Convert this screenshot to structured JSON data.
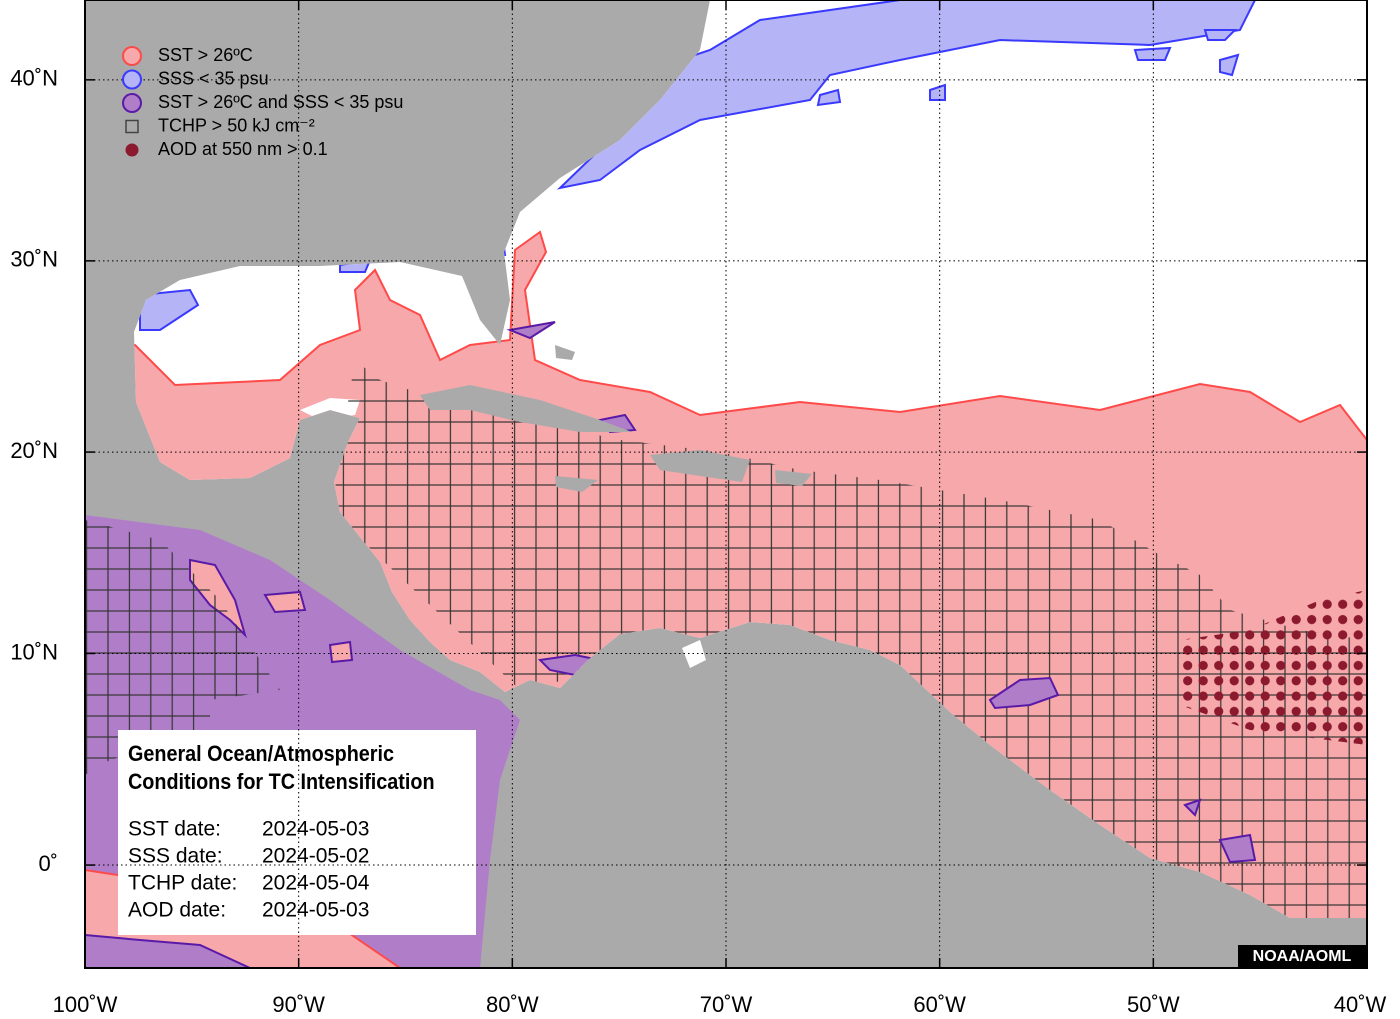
{
  "map": {
    "legend": [
      {
        "label": "SST > 26ºC",
        "color": "#f7a8aa",
        "edge": "#ff4a4a"
      },
      {
        "label": "SSS < 35 psu",
        "color": "#b4b4f6",
        "edge": "#3a3aff"
      },
      {
        "label": "SST > 26ºC and SSS < 35 psu",
        "color": "#b07ec8",
        "edge": "#5a1aa8"
      },
      {
        "label": "TCHP > 50 kJ cm⁻²",
        "color": "none",
        "edge": "#444444"
      },
      {
        "label": "AOD at 550 nm > 0.1",
        "color": "#8c1a2e",
        "edge": "#8c1a2e"
      }
    ],
    "info_box": {
      "title": [
        "General Ocean/Atmospheric",
        "Conditions for TC Intensification"
      ],
      "dates": [
        {
          "label": "SST date:",
          "value": "2024-05-03"
        },
        {
          "label": "SSS date:",
          "value": "2024-05-02"
        },
        {
          "label": "TCHP date:",
          "value": "2024-05-04"
        },
        {
          "label": "AOD date:",
          "value": "2024-05-03"
        }
      ]
    },
    "credit": "NOAA/AOML",
    "xlim": [
      -100,
      -40
    ],
    "xticks": [
      {
        "value": -100,
        "label": "100˚W"
      },
      {
        "value": -90,
        "label": "90˚W"
      },
      {
        "value": -80,
        "label": "80˚W"
      },
      {
        "value": -70,
        "label": "70˚W"
      },
      {
        "value": -60,
        "label": "60˚W"
      },
      {
        "value": -50,
        "label": "50˚W"
      },
      {
        "value": -40,
        "label": "40˚W"
      }
    ],
    "ylim": [
      -4.7,
      44.6
    ],
    "yticks": [
      {
        "value": 0,
        "label": "0˚"
      },
      {
        "value": 10,
        "label": "10˚N"
      },
      {
        "value": 20,
        "label": "20˚N"
      },
      {
        "value": 30,
        "label": "30˚N"
      },
      {
        "value": 40,
        "label": "40˚N"
      }
    ],
    "grid": true
  }
}
